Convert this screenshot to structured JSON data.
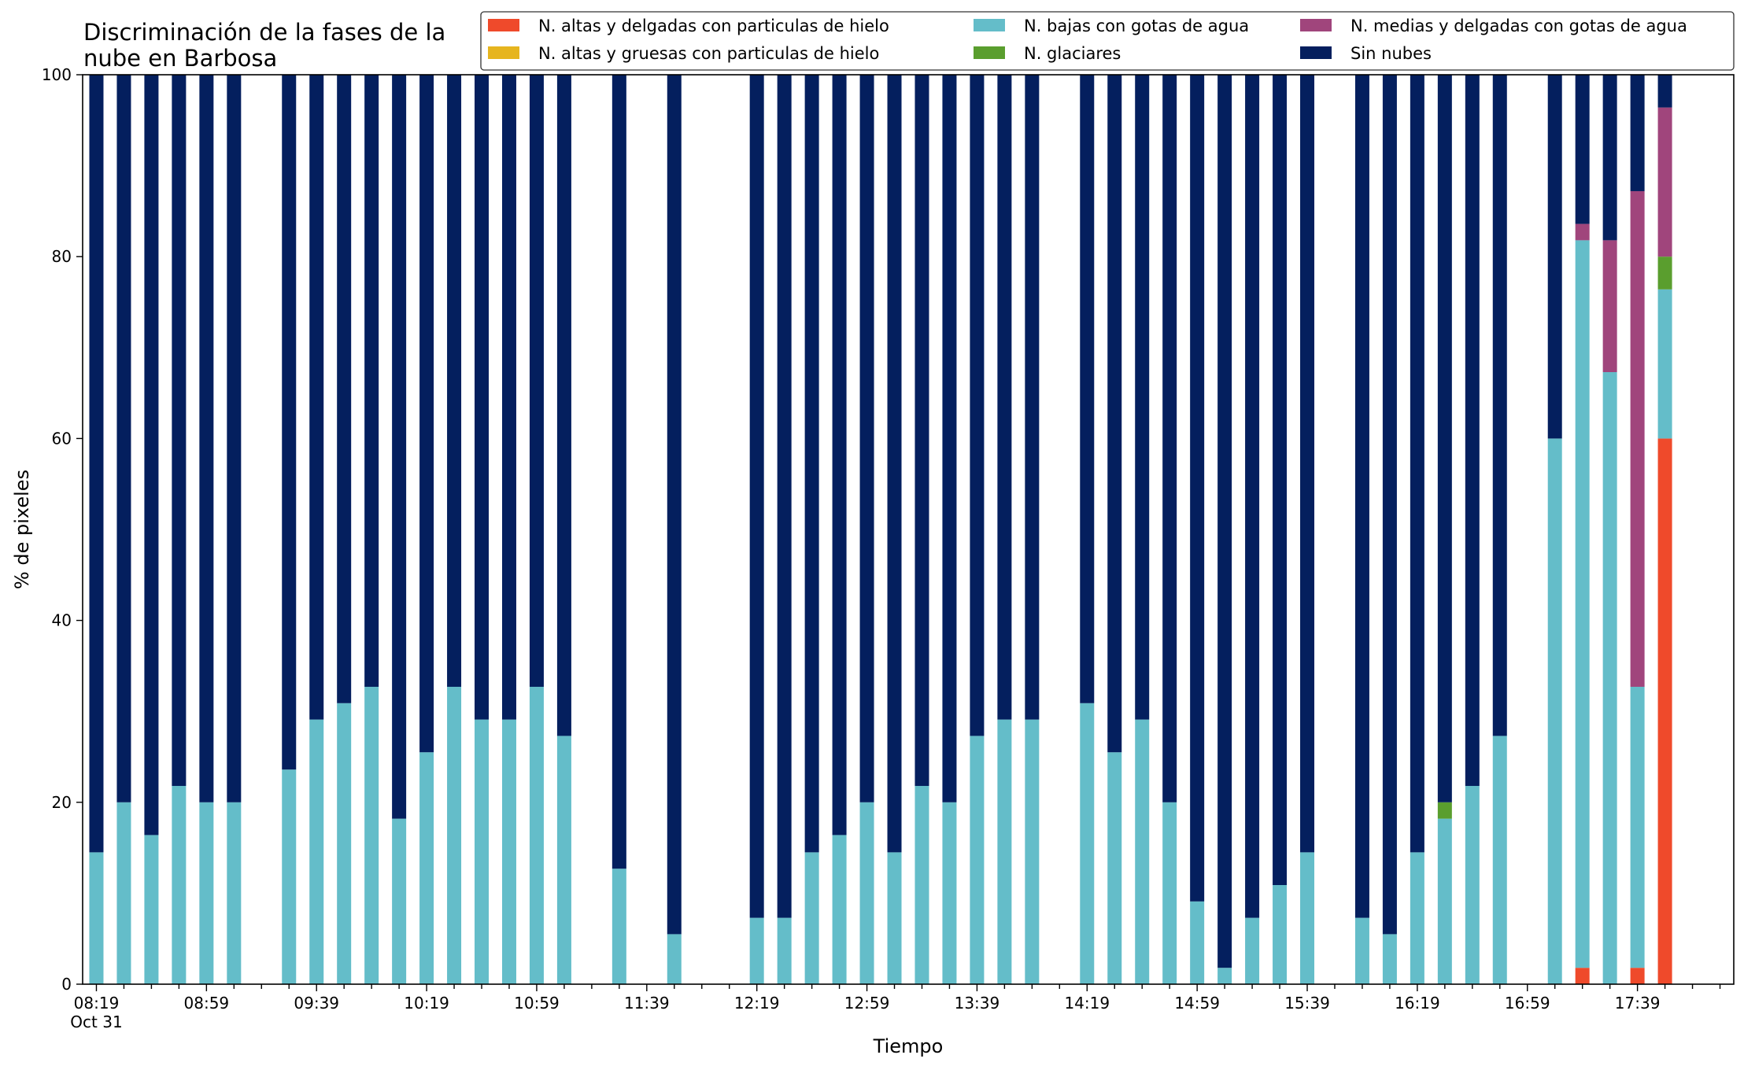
{
  "chart_data": {
    "type": "bar",
    "stacked": true,
    "title": [
      "Discriminación de la fases de la",
      "nube en Barbosa"
    ],
    "xlabel": "Tiempo",
    "ylabel": "% de pixeles",
    "ylim": [
      0,
      100
    ],
    "yticks": [
      0,
      20,
      40,
      60,
      80,
      100
    ],
    "xlim": [
      0,
      59
    ],
    "xticks": [
      {
        "pos": 0,
        "label": "08:19",
        "sub": "Oct 31"
      },
      {
        "pos": 4,
        "label": "08:59"
      },
      {
        "pos": 8,
        "label": "09:39"
      },
      {
        "pos": 12,
        "label": "10:19"
      },
      {
        "pos": 16,
        "label": "10:59"
      },
      {
        "pos": 20,
        "label": "11:39"
      },
      {
        "pos": 24,
        "label": "12:19"
      },
      {
        "pos": 28,
        "label": "12:59"
      },
      {
        "pos": 32,
        "label": "13:39"
      },
      {
        "pos": 36,
        "label": "14:19"
      },
      {
        "pos": 40,
        "label": "14:59"
      },
      {
        "pos": 44,
        "label": "15:39"
      },
      {
        "pos": 48,
        "label": "16:19"
      },
      {
        "pos": 52,
        "label": "16:59"
      },
      {
        "pos": 56,
        "label": "17:39"
      }
    ],
    "legend_position": "top-right",
    "legend_columns": 3,
    "series": [
      {
        "name": "N. altas y delgadas con particulas de hielo",
        "color": "#ef4a2b"
      },
      {
        "name": "N. altas y gruesas con particulas de hielo",
        "color": "#e6b51e"
      },
      {
        "name": "N. bajas con gotas de agua",
        "color": "#64bdc9"
      },
      {
        "name": "N. glaciares",
        "color": "#5a9e2e"
      },
      {
        "name": "N. medias y delgadas con gotas de agua",
        "color": "#a0457c"
      },
      {
        "name": "Sin nubes",
        "color": "#041f5e"
      }
    ],
    "bars": [
      {
        "x": 0,
        "v": [
          0,
          0,
          14.5,
          0,
          0,
          85.5
        ]
      },
      {
        "x": 1,
        "v": [
          0,
          0,
          20,
          0,
          0,
          80
        ]
      },
      {
        "x": 2,
        "v": [
          0,
          0,
          16.4,
          0,
          0,
          83.6
        ]
      },
      {
        "x": 3,
        "v": [
          0,
          0,
          21.8,
          0,
          0,
          78.2
        ]
      },
      {
        "x": 4,
        "v": [
          0,
          0,
          20,
          0,
          0,
          80
        ]
      },
      {
        "x": 5,
        "v": [
          0,
          0,
          20,
          0,
          0,
          80
        ]
      },
      {
        "x": 7,
        "v": [
          0,
          0,
          23.6,
          0,
          0,
          76.4
        ]
      },
      {
        "x": 8,
        "v": [
          0,
          0,
          29.1,
          0,
          0,
          70.9
        ]
      },
      {
        "x": 9,
        "v": [
          0,
          0,
          30.9,
          0,
          0,
          69.1
        ]
      },
      {
        "x": 10,
        "v": [
          0,
          0,
          32.7,
          0,
          0,
          67.3
        ]
      },
      {
        "x": 11,
        "v": [
          0,
          0,
          18.2,
          0,
          0,
          81.8
        ]
      },
      {
        "x": 12,
        "v": [
          0,
          0,
          25.5,
          0,
          0,
          74.5
        ]
      },
      {
        "x": 13,
        "v": [
          0,
          0,
          32.7,
          0,
          0,
          67.3
        ]
      },
      {
        "x": 14,
        "v": [
          0,
          0,
          29.1,
          0,
          0,
          70.9
        ]
      },
      {
        "x": 15,
        "v": [
          0,
          0,
          29.1,
          0,
          0,
          70.9
        ]
      },
      {
        "x": 16,
        "v": [
          0,
          0,
          32.7,
          0,
          0,
          67.3
        ]
      },
      {
        "x": 17,
        "v": [
          0,
          0,
          27.3,
          0,
          0,
          72.7
        ]
      },
      {
        "x": 19,
        "v": [
          0,
          0,
          12.7,
          0,
          0,
          87.3
        ]
      },
      {
        "x": 21,
        "v": [
          0,
          0,
          5.5,
          0,
          0,
          94.5
        ]
      },
      {
        "x": 24,
        "v": [
          0,
          0,
          7.3,
          0,
          0,
          92.7
        ]
      },
      {
        "x": 25,
        "v": [
          0,
          0,
          7.3,
          0,
          0,
          92.7
        ]
      },
      {
        "x": 26,
        "v": [
          0,
          0,
          14.5,
          0,
          0,
          85.5
        ]
      },
      {
        "x": 27,
        "v": [
          0,
          0,
          16.4,
          0,
          0,
          83.6
        ]
      },
      {
        "x": 28,
        "v": [
          0,
          0,
          20,
          0,
          0,
          80
        ]
      },
      {
        "x": 29,
        "v": [
          0,
          0,
          14.5,
          0,
          0,
          85.5
        ]
      },
      {
        "x": 30,
        "v": [
          0,
          0,
          21.8,
          0,
          0,
          78.2
        ]
      },
      {
        "x": 31,
        "v": [
          0,
          0,
          20,
          0,
          0,
          80
        ]
      },
      {
        "x": 32,
        "v": [
          0,
          0,
          27.3,
          0,
          0,
          72.7
        ]
      },
      {
        "x": 33,
        "v": [
          0,
          0,
          29.1,
          0,
          0,
          70.9
        ]
      },
      {
        "x": 34,
        "v": [
          0,
          0,
          29.1,
          0,
          0,
          70.9
        ]
      },
      {
        "x": 36,
        "v": [
          0,
          0,
          30.9,
          0,
          0,
          69.1
        ]
      },
      {
        "x": 37,
        "v": [
          0,
          0,
          25.5,
          0,
          0,
          74.5
        ]
      },
      {
        "x": 38,
        "v": [
          0,
          0,
          29.1,
          0,
          0,
          70.9
        ]
      },
      {
        "x": 39,
        "v": [
          0,
          0,
          20,
          0,
          0,
          80
        ]
      },
      {
        "x": 40,
        "v": [
          0,
          0,
          9.1,
          0,
          0,
          90.9
        ]
      },
      {
        "x": 41,
        "v": [
          0,
          0,
          1.8,
          0,
          0,
          98.2
        ]
      },
      {
        "x": 42,
        "v": [
          0,
          0,
          7.3,
          0,
          0,
          92.7
        ]
      },
      {
        "x": 43,
        "v": [
          0,
          0,
          10.9,
          0,
          0,
          89.1
        ]
      },
      {
        "x": 44,
        "v": [
          0,
          0,
          14.5,
          0,
          0,
          85.5
        ]
      },
      {
        "x": 46,
        "v": [
          0,
          0,
          7.3,
          0,
          0,
          92.7
        ]
      },
      {
        "x": 47,
        "v": [
          0,
          0,
          5.5,
          0,
          0,
          94.5
        ]
      },
      {
        "x": 48,
        "v": [
          0,
          0,
          14.5,
          0,
          0,
          85.5
        ]
      },
      {
        "x": 49,
        "v": [
          0,
          0,
          18.2,
          1.8,
          0,
          80
        ]
      },
      {
        "x": 50,
        "v": [
          0,
          0,
          21.8,
          0,
          0,
          78.2
        ]
      },
      {
        "x": 51,
        "v": [
          0,
          0,
          27.3,
          0,
          0,
          72.7
        ]
      },
      {
        "x": 53,
        "v": [
          0,
          0,
          60,
          0,
          0,
          40
        ]
      },
      {
        "x": 54,
        "v": [
          1.8,
          0,
          80,
          0,
          1.8,
          16.4
        ]
      },
      {
        "x": 55,
        "v": [
          0,
          0,
          67.3,
          0,
          14.5,
          18.2
        ]
      },
      {
        "x": 56,
        "v": [
          1.8,
          0,
          30.9,
          0,
          54.5,
          12.8
        ]
      },
      {
        "x": 57,
        "v": [
          60,
          0,
          16.4,
          3.6,
          16.4,
          3.6
        ]
      }
    ]
  }
}
